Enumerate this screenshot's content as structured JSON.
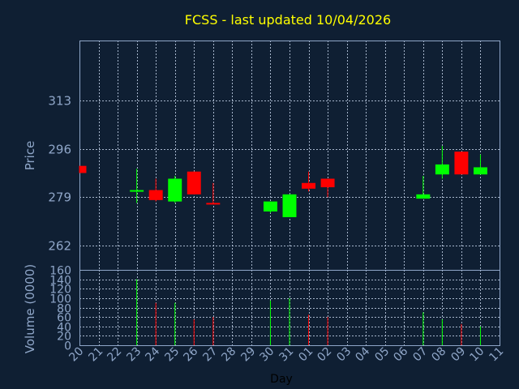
{
  "chart_data": {
    "type": "candlestick",
    "title": "FCSS - last updated 10/04/2026",
    "price_axis": {
      "label": "Price",
      "ticks": [
        262,
        279,
        296,
        313
      ],
      "ylim": [
        253.5,
        334
      ]
    },
    "volume_axis": {
      "label": "Volume (0000)",
      "ticks": [
        0,
        20,
        40,
        60,
        80,
        100,
        120,
        140,
        160
      ],
      "ylim": [
        0,
        160
      ]
    },
    "x_axis": {
      "label": "Day",
      "ticks": [
        "20",
        "21",
        "22",
        "23",
        "24",
        "25",
        "26",
        "27",
        "28",
        "29",
        "30",
        "31",
        "01",
        "02",
        "03",
        "04",
        "05",
        "06",
        "07",
        "08",
        "09",
        "10",
        "11"
      ]
    },
    "grid": true,
    "colors": {
      "up": "#00ff00",
      "down": "#ff0000",
      "title": "#ffff00",
      "axis": "#8fa6c8"
    },
    "candles": [
      {
        "day": "20",
        "open": 290,
        "high": 290,
        "low": 287.5,
        "close": 287.5,
        "volume": 0
      },
      {
        "day": "23",
        "open": 281.5,
        "high": 289,
        "low": 277,
        "close": 281.5,
        "volume": 140
      },
      {
        "day": "24",
        "open": 281.5,
        "high": 285.5,
        "low": 277.5,
        "close": 278,
        "volume": 90
      },
      {
        "day": "25",
        "open": 277.5,
        "high": 286.5,
        "low": 277,
        "close": 285.5,
        "volume": 90
      },
      {
        "day": "26",
        "open": 288,
        "high": 288,
        "low": 280,
        "close": 280,
        "volume": 55
      },
      {
        "day": "27",
        "open": 277,
        "high": 284,
        "low": 276.5,
        "close": 276.5,
        "volume": 60
      },
      {
        "day": "30",
        "open": 274,
        "high": 277.5,
        "low": 273.5,
        "close": 277.5,
        "volume": 95
      },
      {
        "day": "31",
        "open": 272,
        "high": 280,
        "low": 272,
        "close": 280,
        "volume": 100
      },
      {
        "day": "01",
        "open": 284,
        "high": 288,
        "low": 281,
        "close": 282,
        "volume": 65
      },
      {
        "day": "02",
        "open": 285.5,
        "high": 285.5,
        "low": 279,
        "close": 282.5,
        "volume": 60
      },
      {
        "day": "07",
        "open": 278.5,
        "high": 286.5,
        "low": 278.5,
        "close": 280,
        "volume": 70
      },
      {
        "day": "08",
        "open": 287,
        "high": 297,
        "low": 285.5,
        "close": 290.5,
        "volume": 55
      },
      {
        "day": "09",
        "open": 295,
        "high": 295,
        "low": 287,
        "close": 287,
        "volume": 45
      },
      {
        "day": "10",
        "open": 287,
        "high": 294,
        "low": 287,
        "close": 289.5,
        "volume": 40
      }
    ]
  }
}
